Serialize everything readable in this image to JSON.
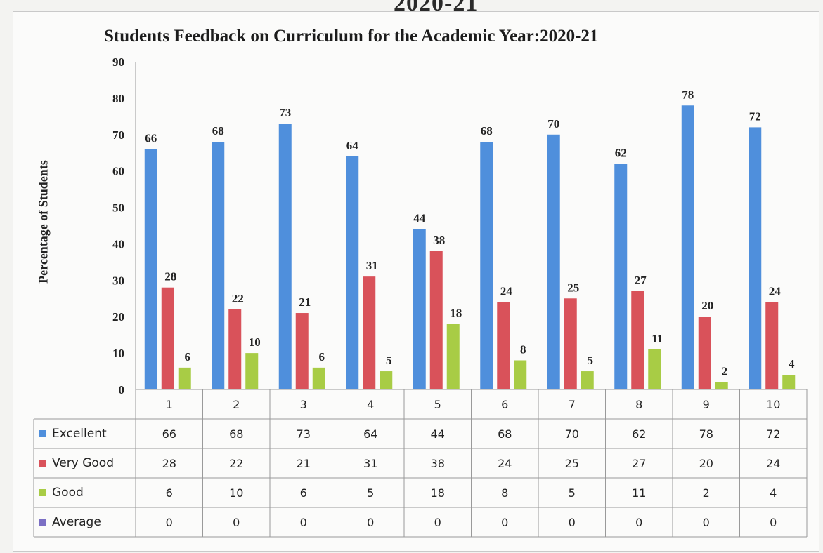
{
  "page_fragment": "2020-21",
  "chart_data": {
    "type": "bar",
    "title": "Students Feedback on Curriculum for the Academic Year:2020-21",
    "ylabel": "Percentage of Students",
    "xlabel": "",
    "ylim": [
      0,
      90
    ],
    "yticks": [
      0,
      10,
      20,
      30,
      40,
      50,
      60,
      70,
      80,
      90
    ],
    "categories": [
      "1",
      "2",
      "3",
      "4",
      "5",
      "6",
      "7",
      "8",
      "9",
      "10"
    ],
    "series": [
      {
        "name": "Excellent",
        "color": "#4f8fdc",
        "values": [
          66,
          68,
          73,
          64,
          44,
          68,
          70,
          62,
          78,
          72
        ]
      },
      {
        "name": "Very Good",
        "color": "#d9525a",
        "values": [
          28,
          22,
          21,
          31,
          38,
          24,
          25,
          27,
          20,
          24
        ]
      },
      {
        "name": "Good",
        "color": "#a8cc45",
        "values": [
          6,
          10,
          6,
          5,
          18,
          8,
          5,
          11,
          2,
          4
        ]
      },
      {
        "name": "Average",
        "color": "#7b6fc4",
        "values": [
          0,
          0,
          0,
          0,
          0,
          0,
          0,
          0,
          0,
          0
        ]
      }
    ],
    "data_table": true,
    "grid": false
  }
}
